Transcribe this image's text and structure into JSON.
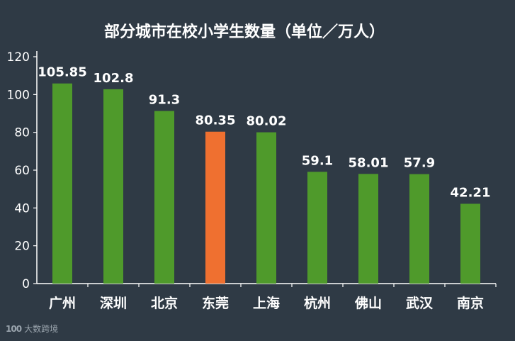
{
  "watermark": {
    "logo": "100",
    "text": "大数跨境"
  },
  "chart_data": {
    "type": "bar",
    "title": "部分城市在校小学生数量（单位／万人）",
    "xlabel": "",
    "ylabel": "",
    "ylim": [
      0,
      120
    ],
    "yticks": [
      0,
      20,
      40,
      60,
      80,
      100,
      120
    ],
    "grid": false,
    "categories": [
      "广州",
      "深圳",
      "北京",
      "东莞",
      "上海",
      "杭州",
      "佛山",
      "武汉",
      "南京"
    ],
    "values": [
      105.85,
      102.8,
      91.3,
      80.35,
      80.02,
      59.1,
      58.01,
      57.9,
      42.21
    ],
    "value_labels": [
      "105.85",
      "102.8",
      "91.3",
      "80.35",
      "80.02",
      "59.1",
      "58.01",
      "57.9",
      "42.21"
    ],
    "bar_colors": [
      "#4f9a2b",
      "#4f9a2b",
      "#4f9a2b",
      "#ef7030",
      "#4f9a2b",
      "#4f9a2b",
      "#4f9a2b",
      "#4f9a2b",
      "#4f9a2b"
    ],
    "axis_color": "#ffffff"
  }
}
